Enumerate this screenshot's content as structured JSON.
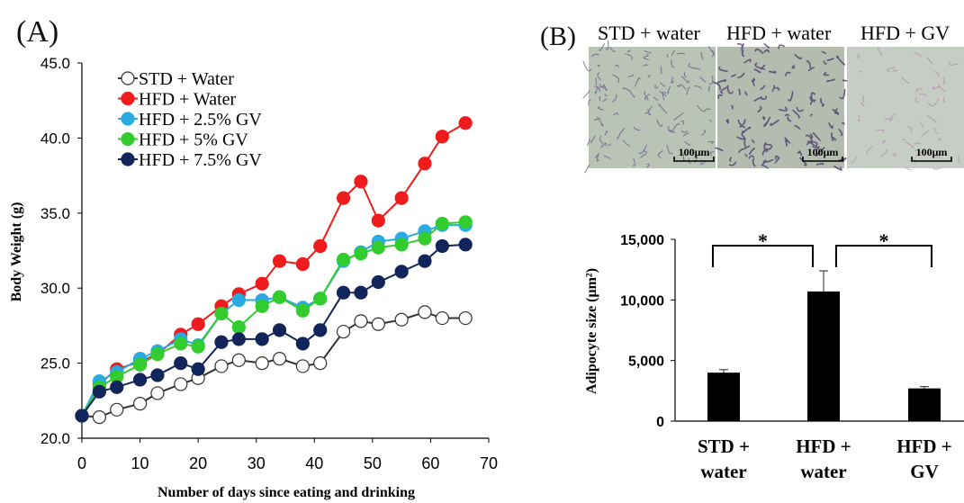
{
  "panels": {
    "a_label": "(A)",
    "b_label": "(B)"
  },
  "micrographs": [
    {
      "title": "STD + water",
      "scale": "100μm",
      "tint": "#b9c3b6"
    },
    {
      "title": "HFD + water",
      "scale": "100μm",
      "tint": "#b3bcae"
    },
    {
      "title": "HFD + GV",
      "scale": "100μm",
      "tint": "#c6cdc4"
    }
  ],
  "chart_data": [
    {
      "type": "line",
      "xlabel": "Number of days since eating and drinking",
      "ylabel": "Body Weight (g)",
      "xlim": [
        0,
        70
      ],
      "ylim": [
        20,
        45
      ],
      "xticks": [
        "0",
        "10",
        "20",
        "30",
        "40",
        "50",
        "60",
        "70"
      ],
      "yticks": [
        "20.0",
        "25.0",
        "30.0",
        "35.0",
        "40.0",
        "45.0"
      ],
      "grid": false,
      "legend": "top-left",
      "x": [
        0,
        3,
        6,
        10,
        13,
        17,
        20,
        24,
        27,
        31,
        34,
        38,
        41,
        45,
        48,
        51,
        55,
        59,
        62,
        66
      ],
      "series": [
        {
          "name": "STD + Water",
          "color": "#ffffff",
          "stroke": "#333333",
          "values": [
            21.5,
            21.4,
            21.9,
            22.3,
            23.0,
            23.6,
            24.0,
            24.8,
            25.2,
            25.0,
            25.3,
            24.8,
            25.0,
            27.1,
            27.8,
            27.6,
            27.9,
            28.4,
            28.0,
            28.0
          ]
        },
        {
          "name": "HFD + Water",
          "color": "#ee1c1c",
          "values": [
            21.5,
            23.6,
            24.6,
            25.1,
            25.6,
            26.9,
            27.6,
            28.8,
            29.6,
            30.3,
            31.8,
            31.6,
            32.8,
            36.0,
            37.1,
            34.5,
            36.0,
            38.3,
            40.1,
            41.0
          ]
        },
        {
          "name": "HFD + 2.5% GV",
          "color": "#29abe2",
          "values": [
            21.5,
            23.8,
            24.4,
            25.3,
            25.8,
            26.6,
            26.2,
            28.3,
            29.2,
            29.2,
            29.4,
            28.7,
            29.3,
            31.8,
            32.4,
            33.1,
            33.3,
            33.8,
            34.2,
            34.2
          ]
        },
        {
          "name": "HFD + 5% GV",
          "color": "#33cc2e",
          "values": [
            21.5,
            23.4,
            24.1,
            24.9,
            25.6,
            26.3,
            26.1,
            28.3,
            27.4,
            28.8,
            29.4,
            28.5,
            29.3,
            31.9,
            32.3,
            32.7,
            32.9,
            33.3,
            34.3,
            34.4
          ]
        },
        {
          "name": "HFD + 7.5% GV",
          "color": "#12255a",
          "values": [
            21.5,
            23.1,
            23.4,
            23.9,
            24.2,
            25.0,
            24.6,
            26.4,
            26.6,
            26.6,
            27.2,
            26.3,
            27.2,
            29.7,
            29.7,
            30.4,
            31.1,
            31.8,
            32.8,
            32.9
          ]
        }
      ]
    },
    {
      "type": "bar",
      "ylabel": "Adipocyte size (μm²)",
      "ylim": [
        0,
        15000
      ],
      "yticks": [
        "0",
        "5,000",
        "10,000",
        "15,000"
      ],
      "categories": [
        [
          "STD +",
          "water"
        ],
        [
          "HFD +",
          "water"
        ],
        [
          "HFD +",
          "GV"
        ]
      ],
      "values": [
        4000,
        10700,
        2700
      ],
      "errors": [
        250,
        1700,
        150
      ],
      "significance": [
        "*",
        "*"
      ],
      "color": "#000000"
    }
  ]
}
